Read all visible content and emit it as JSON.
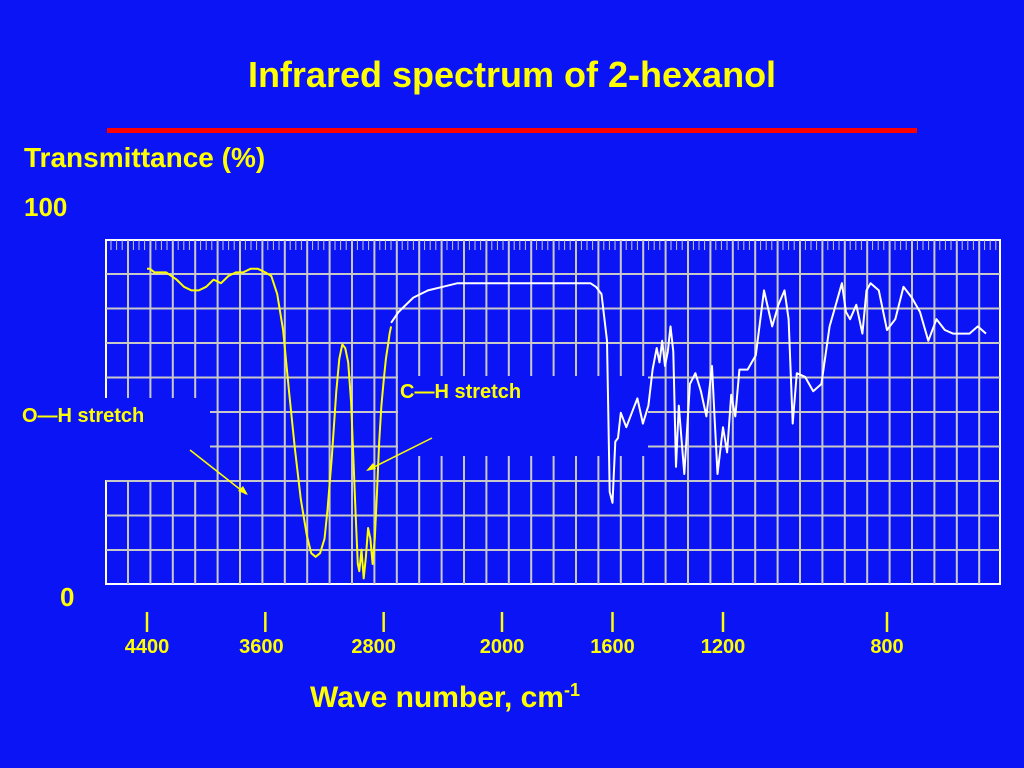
{
  "chart_data": {
    "type": "line",
    "title": "Infrared spectrum of 2-hexanol",
    "ylabel": "Transmittance (%)",
    "xlabel": "Wave number, cm",
    "xlabel_superscript": "-1",
    "ylim": [
      0,
      100
    ],
    "y_tick_labels": [
      "100",
      "0"
    ],
    "x_ticks": [
      {
        "value": 4400,
        "label": "4400"
      },
      {
        "value": 3600,
        "label": "3600"
      },
      {
        "value": 2800,
        "label": "2800"
      },
      {
        "value": 2000,
        "label": "2000"
      },
      {
        "value": 1600,
        "label": "1600"
      },
      {
        "value": 1200,
        "label": "1200"
      },
      {
        "value": 800,
        "label": "800"
      }
    ],
    "annotations": [
      {
        "text": "O—H stretch",
        "x": 3370,
        "y": 22
      },
      {
        "text": "C—H stretch",
        "x": 2950,
        "y": 34
      }
    ],
    "series": [
      {
        "color": "#ffff00",
        "x": [
          4400,
          4380,
          4350,
          4300,
          4270,
          4200,
          4150,
          4100,
          4050,
          4000,
          3950,
          3900,
          3850,
          3800,
          3750,
          3700,
          3650,
          3600,
          3560,
          3520,
          3480,
          3440,
          3400,
          3360,
          3320,
          3290,
          3260,
          3230,
          3200,
          3180,
          3150,
          3120,
          3100,
          3080,
          3060,
          3040,
          3020,
          3005,
          2990,
          2975,
          2965,
          2950,
          2935,
          2920,
          2905,
          2890,
          2875,
          2860,
          2845,
          2830,
          2815,
          2800,
          2785,
          2770,
          2760,
          2750
        ],
        "y": [
          92,
          92,
          91,
          91,
          91,
          89,
          87,
          86,
          86,
          87,
          89,
          88,
          90,
          91,
          91,
          92,
          92,
          91,
          90,
          85,
          75,
          58,
          42,
          28,
          18,
          13,
          12,
          13,
          17,
          25,
          40,
          58,
          67,
          71,
          70,
          66,
          55,
          40,
          24,
          10,
          8,
          14,
          6,
          12,
          20,
          17,
          10,
          17,
          30,
          44,
          54,
          61,
          67,
          71,
          74,
          76
        ]
      },
      {
        "color": "#ffffff",
        "x": [
          2750,
          2700,
          2600,
          2500,
          2400,
          2300,
          2200,
          2100,
          2000,
          1900,
          1800,
          1750,
          1700,
          1680,
          1660,
          1640,
          1620,
          1610,
          1600,
          1590,
          1580,
          1570,
          1550,
          1530,
          1510,
          1490,
          1470,
          1455,
          1440,
          1430,
          1420,
          1410,
          1400,
          1390,
          1380,
          1370,
          1360,
          1340,
          1320,
          1300,
          1280,
          1260,
          1240,
          1230,
          1220,
          1200,
          1190,
          1180,
          1170,
          1160,
          1140,
          1120,
          1100,
          1080,
          1065,
          1050,
          1040,
          1030,
          1020,
          1000,
          980,
          960,
          940,
          925,
          910,
          900,
          890,
          875,
          860,
          850,
          840,
          820,
          800,
          780,
          760,
          740,
          720,
          700,
          680,
          660,
          640,
          620,
          600,
          580,
          560
        ],
        "y": [
          77,
          80,
          84,
          86,
          87,
          88,
          88,
          88,
          88,
          88,
          88,
          88,
          88,
          88,
          87,
          85,
          72,
          30,
          27,
          44,
          45,
          52,
          48,
          52,
          56,
          49,
          54,
          64,
          70,
          66,
          72,
          65,
          69,
          76,
          69,
          37,
          54,
          35,
          60,
          63,
          58,
          51,
          65,
          50,
          35,
          48,
          41,
          57,
          51,
          64,
          64,
          68,
          86,
          76,
          82,
          86,
          78,
          49,
          63,
          62,
          58,
          60,
          76,
          82,
          88,
          80,
          78,
          82,
          74,
          86,
          88,
          86,
          75,
          78,
          87,
          84,
          80,
          72,
          78,
          75,
          74,
          74,
          74,
          76,
          74
        ]
      }
    ]
  }
}
